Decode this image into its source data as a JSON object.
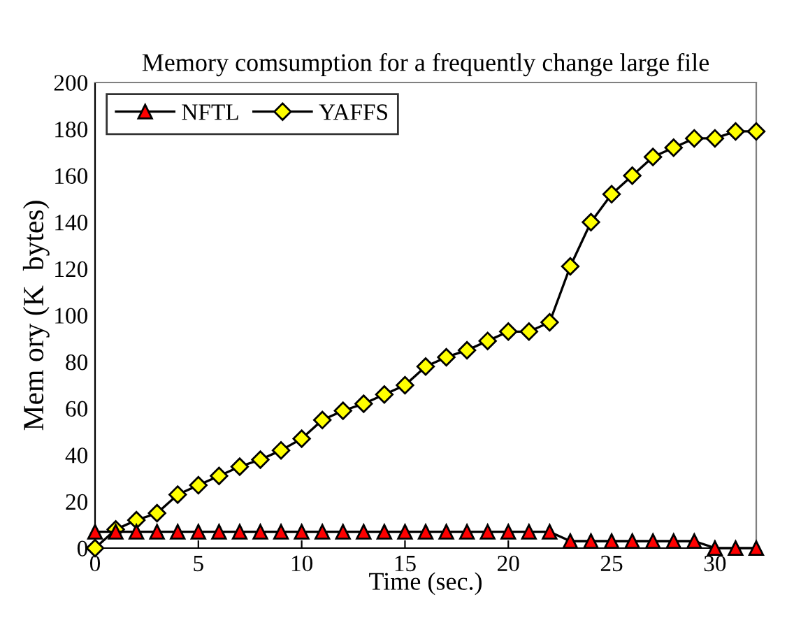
{
  "chart_data": {
    "type": "line",
    "title": "Memory comsumption for a frequently change large file",
    "xlabel": "Time (sec.)",
    "ylabel": "Mem ory (K  bytes)",
    "x": [
      0,
      1,
      2,
      3,
      4,
      5,
      6,
      7,
      8,
      9,
      10,
      11,
      12,
      13,
      14,
      15,
      16,
      17,
      18,
      19,
      20,
      21,
      22,
      23,
      24,
      25,
      26,
      27,
      28,
      29,
      30,
      31,
      32
    ],
    "series": [
      {
        "name": "NFTL",
        "color": "#ff0000",
        "marker": "triangle",
        "values": [
          7,
          7,
          7,
          7,
          7,
          7,
          7,
          7,
          7,
          7,
          7,
          7,
          7,
          7,
          7,
          7,
          7,
          7,
          7,
          7,
          7,
          7,
          7,
          3,
          3,
          3,
          3,
          3,
          3,
          3,
          0,
          0,
          0
        ]
      },
      {
        "name": "YAFFS",
        "color": "#ffff00",
        "marker": "diamond",
        "values": [
          0,
          8,
          12,
          15,
          23,
          27,
          31,
          35,
          38,
          42,
          47,
          55,
          59,
          62,
          66,
          70,
          78,
          82,
          85,
          89,
          93,
          93,
          97,
          121,
          140,
          152,
          160,
          168,
          172,
          176,
          176,
          179,
          179
        ]
      }
    ],
    "xlim": [
      0,
      32
    ],
    "xticks": [
      0,
      5,
      10,
      15,
      20,
      25,
      30
    ],
    "ylim": [
      0,
      200
    ],
    "yticks": [
      0,
      20,
      40,
      60,
      80,
      100,
      120,
      140,
      160,
      180,
      200
    ],
    "grid": false,
    "legend": "top left",
    "line_style": "solid"
  }
}
